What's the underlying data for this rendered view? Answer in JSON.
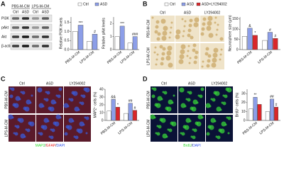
{
  "panels": [
    {
      "letter": "A",
      "blot": {
        "groups": [
          "PBS-M-CM",
          "LPS-M-CM"
        ],
        "lanes": [
          "Ctrl",
          "ASD",
          "Ctrl",
          "ASD"
        ],
        "rows": [
          "PI3K",
          "pAkt",
          "Akt",
          "β-actin"
        ]
      }
    },
    {
      "letter": "B",
      "columns": [
        "Ctrl",
        "ASD",
        "LY294002"
      ],
      "rows": [
        "PBS-M-CM",
        "LPS-M-CM"
      ]
    },
    {
      "letter": "C",
      "columns": [
        "Ctrl",
        "ASD",
        "LY294002"
      ],
      "rows": [
        "PBS-M-CM",
        "LPS-M-CM"
      ],
      "stain": [
        {
          "text": "MAP2",
          "color": "#33dd33"
        },
        {
          "text": "/",
          "color": "#111111"
        },
        {
          "text": "GFAP",
          "color": "#ee2222"
        },
        {
          "text": "/",
          "color": "#111111"
        },
        {
          "text": "DAPI",
          "color": "#3355ee"
        }
      ]
    },
    {
      "letter": "D",
      "columns": [
        "Ctrl",
        "ASD",
        "LY294002"
      ],
      "rows": [
        "PBS-M-CM",
        "LPS-M-CM"
      ],
      "stain": [
        {
          "text": "BrdU",
          "color": "#33dd33"
        },
        {
          "text": "/",
          "color": "#111111"
        },
        {
          "text": "DAPI",
          "color": "#3355ee"
        }
      ]
    }
  ],
  "chart_data": [
    {
      "type": "bar",
      "y_label": "Relative PI3K levels",
      "categories": [
        "PBS-M-CM",
        "LPS-M-CM"
      ],
      "ylim": [
        0,
        1.8
      ],
      "yticks": [
        {
          "value": 0,
          "label": "0.0"
        },
        {
          "value": 0.5,
          "label": "0.5"
        },
        {
          "value": 1,
          "label": "1.0"
        },
        {
          "value": 1.5,
          "label": "1.5"
        }
      ],
      "legend": "top",
      "series": [
        {
          "name": "Ctrl",
          "color": "#ffffff",
          "values": [
            1.0,
            0.45
          ]
        },
        {
          "name": "ASD",
          "color": "#8c9ee8",
          "values": [
            1.35,
            0.85
          ],
          "significance": [
            "***",
            "#"
          ]
        }
      ]
    },
    {
      "type": "bar",
      "y_label": "Relative pAkt levels",
      "categories": [
        "PBS-M-CM",
        "LPS-M-CM"
      ],
      "ylim": [
        0,
        2.5
      ],
      "yticks": [
        0,
        1,
        2
      ],
      "series": [
        {
          "color": "#ffffff",
          "values": [
            1.0,
            0.5
          ]
        },
        {
          "color": "#8c9ee8",
          "values": [
            1.8,
            1.0
          ],
          "significance": [
            "***",
            "###"
          ]
        }
      ]
    },
    {
      "type": "bar",
      "y_label": "Neurosphere size (μm)",
      "categories": [
        "PBS-M-CM",
        "LPS-M-CM"
      ],
      "ylim": [
        0,
        160
      ],
      "yticks": [
        0,
        50,
        100,
        150
      ],
      "legend": "top",
      "series": [
        {
          "name": "Ctrl",
          "color": "#ffffff",
          "values": [
            65,
            45
          ]
        },
        {
          "name": "ASD",
          "color": "#8c9ee8",
          "values": [
            105,
            85
          ],
          "significance": [
            "&",
            "#"
          ]
        },
        {
          "name": "ASD+LY294002",
          "color": "#d9262a",
          "values": [
            70,
            55
          ],
          "significance": [
            "*",
            "#"
          ]
        }
      ]
    },
    {
      "type": "bar",
      "y_label": "MAP2⁺ cells (%)",
      "categories": [
        "PBS-M-CM",
        "LPS-M-CM"
      ],
      "ylim": [
        0,
        40
      ],
      "yticks": [
        0,
        10,
        20,
        30,
        40
      ],
      "series": [
        {
          "color": "#ffffff",
          "values": [
            12,
            9
          ]
        },
        {
          "color": "#8c9ee8",
          "values": [
            27,
            22
          ],
          "significance": [
            "&&",
            "##"
          ]
        },
        {
          "color": "#d9262a",
          "values": [
            17,
            13
          ],
          "significance": [
            "*",
            "#"
          ]
        }
      ]
    },
    {
      "type": "bar",
      "y_label": "BrdU⁺ cells (%)",
      "categories": [
        "PBS-M-CM",
        "LPS-M-CM"
      ],
      "ylim": [
        0,
        35
      ],
      "yticks": [
        0,
        10,
        20,
        30
      ],
      "series": [
        {
          "color": "#ffffff",
          "values": [
            13,
            10
          ]
        },
        {
          "color": "#8c9ee8",
          "values": [
            26,
            24
          ],
          "significance": [
            "**",
            "##"
          ]
        },
        {
          "color": "#d9262a",
          "values": [
            18,
            15
          ],
          "significance": [
            null,
            "#"
          ]
        }
      ]
    }
  ]
}
